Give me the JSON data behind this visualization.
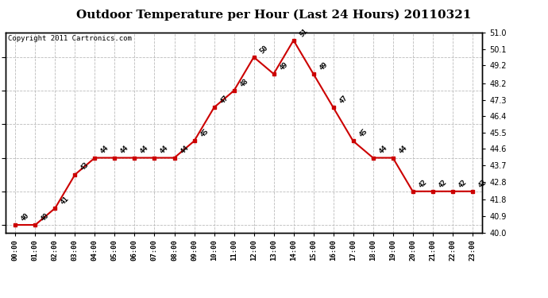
{
  "title": "Outdoor Temperature per Hour (Last 24 Hours) 20110321",
  "copyright": "Copyright 2011 Cartronics.com",
  "hours": [
    "00:00",
    "01:00",
    "02:00",
    "03:00",
    "04:00",
    "05:00",
    "06:00",
    "07:00",
    "08:00",
    "09:00",
    "10:00",
    "11:00",
    "12:00",
    "13:00",
    "14:00",
    "15:00",
    "16:00",
    "17:00",
    "18:00",
    "19:00",
    "20:00",
    "21:00",
    "22:00",
    "23:00"
  ],
  "temps": [
    40,
    40,
    41,
    43,
    44,
    44,
    44,
    44,
    44,
    45,
    47,
    48,
    50,
    49,
    51,
    49,
    47,
    45,
    44,
    44,
    42,
    42,
    42,
    42
  ],
  "line_color": "#cc0000",
  "marker_color": "#cc0000",
  "background_color": "#ffffff",
  "grid_color": "#bbbbbb",
  "ylim_left": [
    39.55,
    51.45
  ],
  "ylim_right": [
    40.0,
    51.0
  ],
  "yticks_right": [
    40.0,
    40.9,
    41.8,
    42.8,
    43.7,
    44.6,
    45.5,
    46.4,
    47.3,
    48.2,
    49.2,
    50.1,
    51.0
  ],
  "title_fontsize": 11,
  "copyright_fontsize": 6.5,
  "label_fontsize": 6.5
}
